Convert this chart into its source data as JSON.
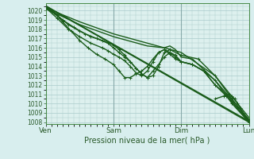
{
  "bg_color": "#d8eeee",
  "plot_bg": "#ddf0ee",
  "grid_color": "#aacccc",
  "line_color": "#1a5c1a",
  "marker_color": "#1a5c1a",
  "xlabel": "Pression niveau de la mer( hPa )",
  "yticks": [
    1008,
    1009,
    1010,
    1011,
    1012,
    1013,
    1014,
    1015,
    1016,
    1017,
    1018,
    1019,
    1020
  ],
  "ylim": [
    1007.8,
    1020.8
  ],
  "xlim": [
    0,
    72
  ],
  "xtick_positions": [
    0,
    24,
    48,
    72
  ],
  "xtick_labels": [
    "Ven",
    "Sam",
    "Dim",
    "Lun"
  ],
  "series": [
    {
      "x": [
        0,
        72
      ],
      "y": [
        1020.5,
        1008.0
      ],
      "lw": 1.2,
      "marker": null
    },
    {
      "x": [
        0,
        12,
        24,
        36,
        48,
        60,
        72
      ],
      "y": [
        1020.3,
        1018.8,
        1017.5,
        1016.5,
        1015.5,
        1013.0,
        1008.5
      ],
      "lw": 1.0,
      "marker": null
    },
    {
      "x": [
        0,
        12,
        24,
        36,
        42,
        44,
        46,
        48,
        52,
        60,
        72
      ],
      "y": [
        1020.2,
        1018.5,
        1017.2,
        1016.2,
        1016.0,
        1016.2,
        1015.8,
        1015.0,
        1014.8,
        1012.5,
        1008.3
      ],
      "lw": 1.0,
      "marker": null
    },
    {
      "x": [
        0,
        6,
        10,
        14,
        18,
        22,
        24,
        26,
        28,
        30,
        32,
        34,
        36,
        38,
        40,
        42,
        44,
        48,
        54,
        60,
        66,
        72
      ],
      "y": [
        1020.4,
        1019.0,
        1018.2,
        1017.5,
        1017.0,
        1016.5,
        1016.0,
        1015.5,
        1015.0,
        1014.5,
        1013.8,
        1013.2,
        1012.8,
        1013.0,
        1014.0,
        1015.5,
        1015.8,
        1015.2,
        1014.8,
        1013.0,
        1010.5,
        1008.2
      ],
      "lw": 1.0,
      "marker": "+"
    },
    {
      "x": [
        0,
        4,
        8,
        12,
        16,
        20,
        24,
        26,
        28,
        30,
        32,
        34,
        36,
        38,
        40,
        42,
        44,
        46,
        48,
        52,
        56,
        60,
        66,
        72
      ],
      "y": [
        1020.3,
        1019.5,
        1018.5,
        1017.8,
        1017.2,
        1016.8,
        1016.3,
        1015.8,
        1015.2,
        1014.5,
        1013.8,
        1013.2,
        1012.8,
        1013.5,
        1014.2,
        1015.0,
        1015.5,
        1015.2,
        1014.5,
        1014.2,
        1013.5,
        1012.5,
        1010.0,
        1008.0
      ],
      "lw": 1.0,
      "marker": "+"
    },
    {
      "x": [
        0,
        4,
        8,
        12,
        16,
        20,
        22,
        24,
        26,
        28,
        30,
        32,
        34,
        36,
        38,
        40,
        42,
        44,
        46,
        48,
        52,
        56,
        60,
        64,
        68,
        72
      ],
      "y": [
        1020.3,
        1019.2,
        1018.0,
        1017.2,
        1016.5,
        1016.0,
        1015.7,
        1015.3,
        1015.0,
        1014.6,
        1014.0,
        1013.3,
        1013.0,
        1013.5,
        1014.5,
        1015.5,
        1015.8,
        1015.5,
        1015.0,
        1014.5,
        1014.2,
        1013.5,
        1012.0,
        1011.0,
        1009.5,
        1008.1
      ],
      "lw": 1.0,
      "marker": "+"
    },
    {
      "x": [
        0,
        3,
        6,
        9,
        12,
        15,
        18,
        21,
        24,
        26,
        28,
        30,
        32,
        34,
        36,
        38,
        40,
        42,
        44,
        46,
        48,
        52,
        56,
        60,
        64,
        68,
        72
      ],
      "y": [
        1020.5,
        1019.8,
        1018.8,
        1017.8,
        1016.8,
        1016.0,
        1015.3,
        1014.8,
        1014.2,
        1013.5,
        1012.8,
        1012.8,
        1013.2,
        1013.5,
        1014.0,
        1014.8,
        1015.5,
        1015.8,
        1015.3,
        1014.8,
        1014.5,
        1014.2,
        1013.5,
        1012.0,
        1010.8,
        1009.5,
        1008.1
      ],
      "lw": 1.0,
      "marker": "+"
    },
    {
      "x": [
        0,
        72
      ],
      "y": [
        1020.5,
        1008.1
      ],
      "lw": 1.2,
      "marker": null
    },
    {
      "x": [
        60,
        63,
        65,
        66,
        67,
        68,
        69,
        70,
        71,
        72
      ],
      "y": [
        1010.5,
        1010.8,
        1011.0,
        1010.8,
        1010.5,
        1010.0,
        1009.5,
        1009.0,
        1008.5,
        1008.2
      ],
      "lw": 1.0,
      "marker": "+"
    }
  ]
}
